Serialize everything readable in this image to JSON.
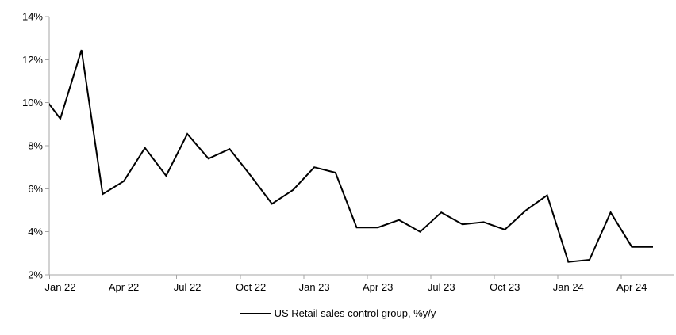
{
  "chart_data": {
    "type": "line",
    "series_name": "US Retail sales control group, %y/y",
    "categories": [
      "Jan 22",
      "Feb 22",
      "Mar 22",
      "Apr 22",
      "May 22",
      "Jun 22",
      "Jul 22",
      "Aug 22",
      "Sep 22",
      "Oct 22",
      "Nov 22",
      "Dec 22",
      "Jan 23",
      "Feb 23",
      "Mar 23",
      "Apr 23",
      "May 23",
      "Jun 23",
      "Jul 23",
      "Aug 23",
      "Sep 23",
      "Oct 23",
      "Nov 23",
      "Dec 23",
      "Jan 24",
      "Feb 24",
      "Mar 24",
      "Apr 24",
      "May 24"
    ],
    "values": [
      9.25,
      12.45,
      5.75,
      6.35,
      7.9,
      6.6,
      8.55,
      7.4,
      7.85,
      6.6,
      5.3,
      5.95,
      7.0,
      6.75,
      4.2,
      4.2,
      4.55,
      4.0,
      4.9,
      4.35,
      4.45,
      4.1,
      5.0,
      5.7,
      2.6,
      2.7,
      4.9,
      3.3,
      3.3
    ],
    "leading_clipped_point": {
      "category": "Dec 21",
      "value": 10.55
    },
    "x_axis_labels": [
      "Jan 22",
      "Apr 22",
      "Jul 22",
      "Oct 22",
      "Jan 23",
      "Apr 23",
      "Jul 23",
      "Oct 23",
      "Jan 24",
      "Apr 24"
    ],
    "x_label_interval_months": 3,
    "y_tick_labels": [
      "2%",
      "4%",
      "6%",
      "8%",
      "10%",
      "12%",
      "14%"
    ],
    "ylim": [
      2,
      14
    ],
    "y_tick_step": 2,
    "grid": false,
    "legend_position": "bottom-center",
    "line_color": "#000000",
    "axis_color": "#a6a6a6",
    "text_color": "#000000",
    "background": "#ffffff"
  },
  "legend": {
    "label": "US Retail sales control group, %y/y"
  }
}
